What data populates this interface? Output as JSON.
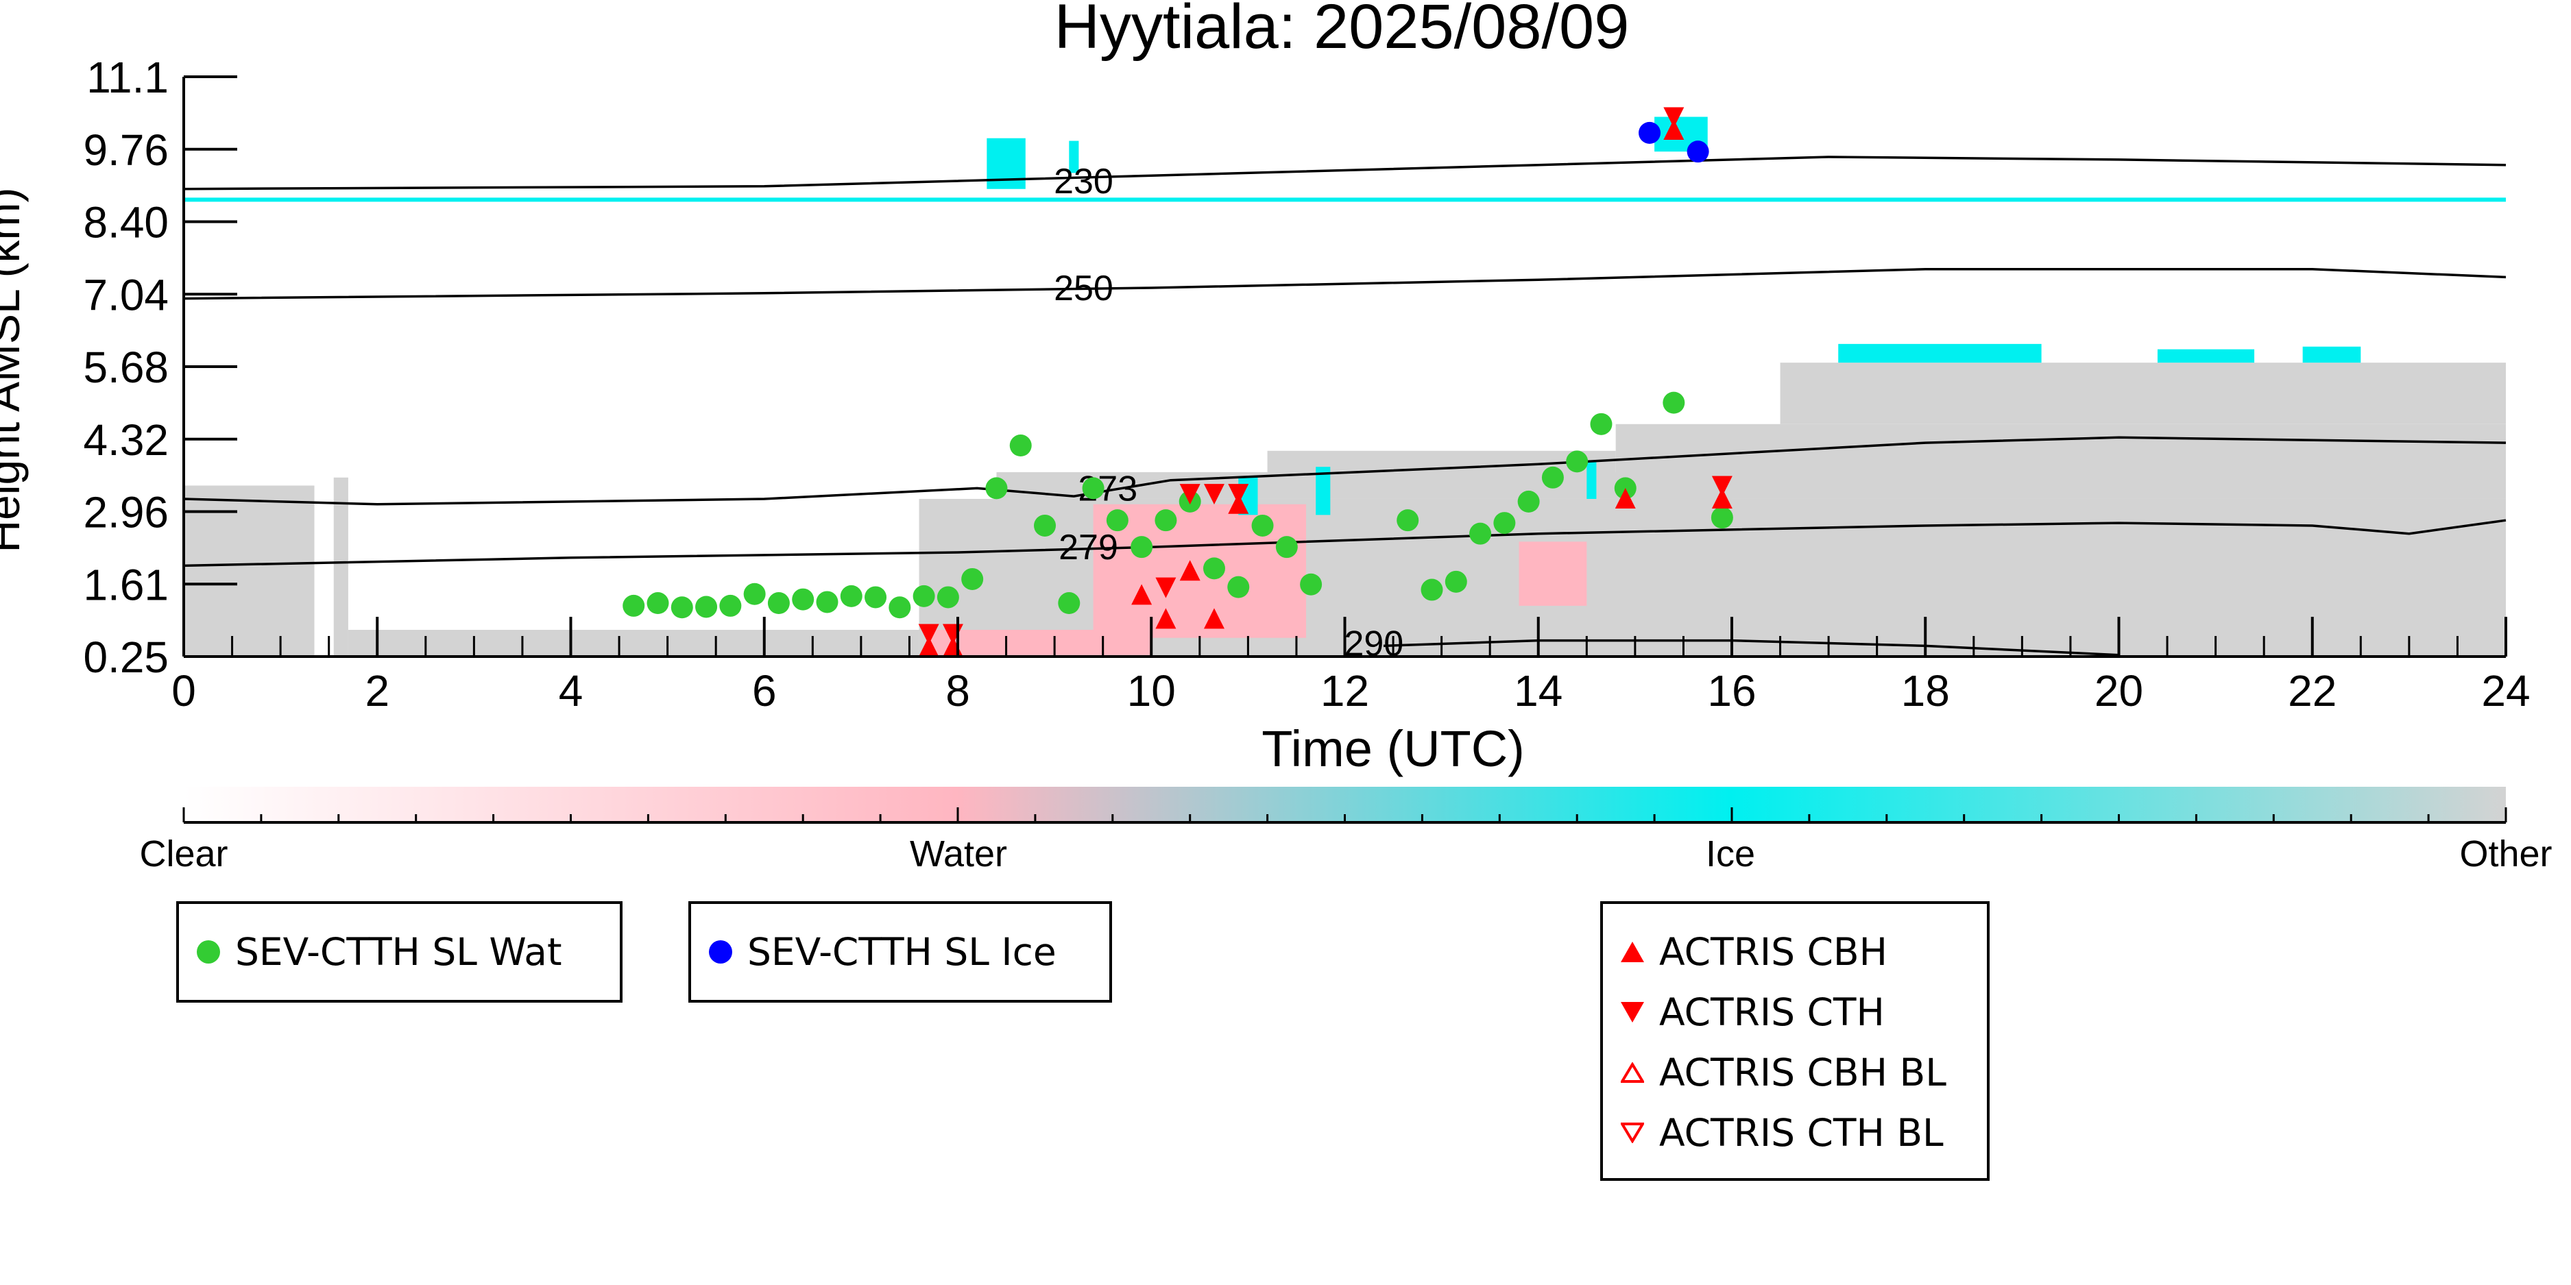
{
  "chart_data": {
    "type": "heatmap",
    "title": "Hyytiala: 2025/08/09",
    "xlabel": "Time (UTC)",
    "ylabel": "Height AMSL (km)",
    "xlim": [
      0,
      24
    ],
    "ylim": [
      0.25,
      11.1
    ],
    "xticks": [
      "0",
      "2",
      "4",
      "6",
      "8",
      "10",
      "12",
      "14",
      "16",
      "18",
      "20",
      "22",
      "24"
    ],
    "yticks": [
      "0.25",
      "1.61",
      "2.96",
      "4.32",
      "5.68",
      "7.04",
      "8.40",
      "9.76",
      "11.1"
    ],
    "classification_colors": {
      "clear": "#ffffff",
      "water": "#ffb6c1",
      "ice": "#00f0f0",
      "other": "#d3d3d3"
    },
    "colorbar": {
      "labels": [
        "Clear",
        "Water",
        "Ice",
        "Other"
      ]
    },
    "other_regions": [
      {
        "x0": 0.0,
        "x1": 1.35,
        "y0": 0.25,
        "y1": 3.45
      },
      {
        "x0": 1.55,
        "x1": 1.7,
        "y0": 0.25,
        "y1": 3.6
      },
      {
        "x0": 1.7,
        "x1": 7.6,
        "y0": 0.25,
        "y1": 0.75
      },
      {
        "x0": 7.6,
        "x1": 24.0,
        "y0": 0.25,
        "y1": 3.2
      },
      {
        "x0": 8.4,
        "x1": 16.0,
        "y0": 3.2,
        "y1": 3.7
      },
      {
        "x0": 11.2,
        "x1": 14.8,
        "y0": 3.7,
        "y1": 4.1
      },
      {
        "x0": 14.8,
        "x1": 24.0,
        "y0": 3.2,
        "y1": 4.6
      },
      {
        "x0": 16.5,
        "x1": 24.0,
        "y0": 4.6,
        "y1": 5.75
      }
    ],
    "water_regions": [
      {
        "x0": 7.7,
        "x1": 10.0,
        "y0": 0.25,
        "y1": 0.75
      },
      {
        "x0": 9.4,
        "x1": 11.6,
        "y0": 0.6,
        "y1": 3.1
      },
      {
        "x0": 13.8,
        "x1": 14.5,
        "y0": 1.2,
        "y1": 2.4
      }
    ],
    "ice_regions": [
      {
        "x0": 8.3,
        "x1": 8.7,
        "y0": 9.0,
        "y1": 9.95
      },
      {
        "x0": 9.15,
        "x1": 9.25,
        "y0": 9.3,
        "y1": 9.9
      },
      {
        "x0": 10.9,
        "x1": 11.1,
        "y0": 2.9,
        "y1": 3.6
      },
      {
        "x0": 11.7,
        "x1": 11.85,
        "y0": 2.9,
        "y1": 3.8
      },
      {
        "x0": 14.5,
        "x1": 14.6,
        "y0": 3.2,
        "y1": 3.9
      },
      {
        "x0": 15.2,
        "x1": 15.75,
        "y0": 9.7,
        "y1": 10.35
      },
      {
        "x0": 17.1,
        "x1": 19.2,
        "y0": 5.75,
        "y1": 6.1
      },
      {
        "x0": 20.4,
        "x1": 21.4,
        "y0": 5.75,
        "y1": 6.0
      },
      {
        "x0": 21.9,
        "x1": 22.5,
        "y0": 5.75,
        "y1": 6.05
      }
    ],
    "ice_line": {
      "y": 8.8,
      "x0": 0.0,
      "x1": 24.0
    },
    "isotherms": [
      {
        "label": "230",
        "label_x": 9.3,
        "label_y": 9.15,
        "points": [
          [
            0,
            9.0
          ],
          [
            6,
            9.05
          ],
          [
            10,
            9.25
          ],
          [
            14,
            9.45
          ],
          [
            17,
            9.6
          ],
          [
            20,
            9.55
          ],
          [
            24,
            9.45
          ]
        ]
      },
      {
        "label": "250",
        "label_x": 9.3,
        "label_y": 7.15,
        "points": [
          [
            0,
            6.95
          ],
          [
            6,
            7.05
          ],
          [
            10,
            7.15
          ],
          [
            14,
            7.3
          ],
          [
            18,
            7.5
          ],
          [
            22,
            7.5
          ],
          [
            24,
            7.35
          ]
        ]
      },
      {
        "label": "273",
        "label_x": 9.55,
        "label_y": 3.4,
        "points": [
          [
            0,
            3.2
          ],
          [
            2,
            3.1
          ],
          [
            6,
            3.2
          ],
          [
            8.2,
            3.4
          ],
          [
            9.2,
            3.25
          ],
          [
            10.2,
            3.55
          ],
          [
            14,
            3.85
          ],
          [
            18,
            4.25
          ],
          [
            20,
            4.35
          ],
          [
            24,
            4.25
          ]
        ]
      },
      {
        "label": "279",
        "label_x": 9.35,
        "label_y": 2.3,
        "points": [
          [
            0,
            1.95
          ],
          [
            4,
            2.1
          ],
          [
            8,
            2.2
          ],
          [
            10,
            2.3
          ],
          [
            14,
            2.55
          ],
          [
            18,
            2.7
          ],
          [
            20,
            2.75
          ],
          [
            22,
            2.7
          ],
          [
            23,
            2.55
          ],
          [
            24,
            2.8
          ]
        ]
      },
      {
        "label": "290",
        "label_x": 12.3,
        "label_y": 0.5,
        "points": [
          [
            12.4,
            0.45
          ],
          [
            14,
            0.55
          ],
          [
            16,
            0.55
          ],
          [
            18,
            0.45
          ],
          [
            20,
            0.28
          ]
        ]
      }
    ],
    "series": [
      {
        "name": "SEV-CTTH SL Wat",
        "color": "#33cc33",
        "marker": "circle",
        "x": [
          4.65,
          4.9,
          5.15,
          5.4,
          5.65,
          5.9,
          6.15,
          6.4,
          6.65,
          6.9,
          7.15,
          7.4,
          7.65,
          7.9,
          8.15,
          8.4,
          8.65,
          8.9,
          9.15,
          9.4,
          9.65,
          9.9,
          10.15,
          10.4,
          10.65,
          10.9,
          11.15,
          11.4,
          11.65,
          12.65,
          12.9,
          13.15,
          13.4,
          13.65,
          13.9,
          14.15,
          14.4,
          14.65,
          14.9,
          15.4,
          15.9
        ],
        "y": [
          1.2,
          1.25,
          1.17,
          1.18,
          1.2,
          1.42,
          1.25,
          1.32,
          1.27,
          1.38,
          1.36,
          1.17,
          1.38,
          1.36,
          1.7,
          3.4,
          4.2,
          2.7,
          1.25,
          3.4,
          2.8,
          2.3,
          2.8,
          3.15,
          1.9,
          1.55,
          2.7,
          2.3,
          1.6,
          2.8,
          1.5,
          1.65,
          2.55,
          2.75,
          3.15,
          3.6,
          3.9,
          4.6,
          3.4,
          5.0,
          2.85
        ]
      },
      {
        "name": "SEV-CTTH SL Ice",
        "color": "#0000ff",
        "marker": "circle",
        "x": [
          15.15,
          15.65
        ],
        "y": [
          10.05,
          9.7
        ]
      },
      {
        "name": "ACTRIS CBH",
        "color": "#ff0000",
        "marker": "triangle-up",
        "x": [
          7.7,
          7.95,
          9.9,
          10.15,
          10.4,
          10.65,
          10.9,
          14.9,
          15.4,
          15.9
        ],
        "y": [
          0.42,
          0.42,
          1.4,
          0.95,
          1.85,
          0.95,
          3.1,
          3.2,
          10.1,
          3.2
        ]
      },
      {
        "name": "ACTRIS CTH",
        "color": "#ff0000",
        "marker": "triangle-down",
        "x": [
          7.7,
          7.95,
          10.15,
          10.4,
          10.65,
          10.9,
          15.4,
          15.9
        ],
        "y": [
          0.68,
          0.68,
          1.55,
          3.3,
          3.3,
          3.3,
          10.35,
          3.45
        ]
      }
    ],
    "legend": [
      {
        "label": "SEV-CTTH SL Wat",
        "marker": "circle",
        "color": "#33cc33"
      },
      {
        "label": "SEV-CTTH SL Ice",
        "marker": "circle",
        "color": "#0000ff"
      },
      {
        "label": "ACTRIS CBH",
        "marker": "triangle-up",
        "color": "#ff0000"
      },
      {
        "label": "ACTRIS CTH",
        "marker": "triangle-down",
        "color": "#ff0000"
      },
      {
        "label": "ACTRIS CBH BL",
        "marker": "triangle-up-open",
        "color": "#ff0000"
      },
      {
        "label": "ACTRIS CTH BL",
        "marker": "triangle-down-open",
        "color": "#ff0000"
      }
    ]
  }
}
